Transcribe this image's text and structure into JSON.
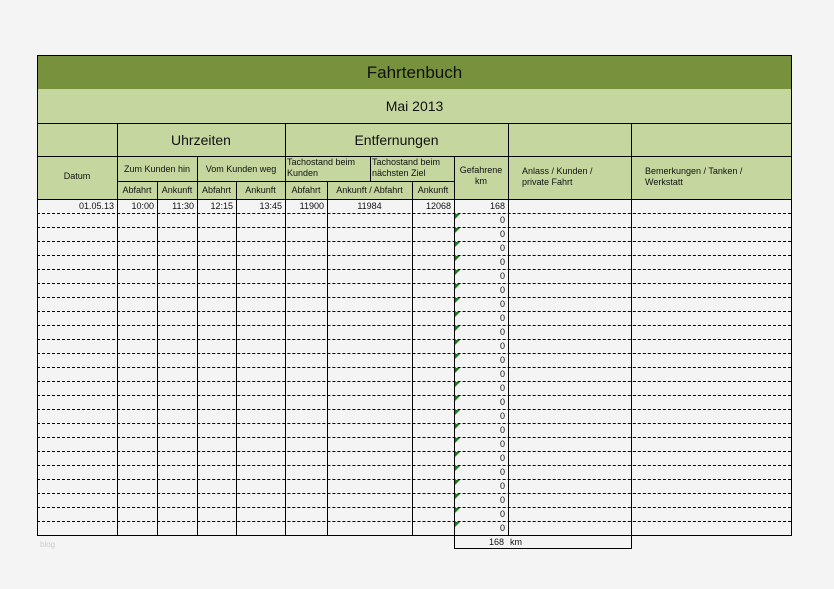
{
  "title": "Fahrtenbuch",
  "month": "Mai 2013",
  "groups": {
    "times": "Uhrzeiten",
    "distances": "Entfernungen"
  },
  "headers": {
    "date": "Datum",
    "to_customer": "Zum Kunden hin",
    "from_customer": "Vom Kunden weg",
    "odo_customer": "Tachostand beim Kunden",
    "odo_next": "Tachostand beim nächsten Ziel",
    "driven_km": "Gefahrene km",
    "reason": "Anlass / Kunden / private Fahrt",
    "remarks": "Bemerkungen / Tanken / Werkstatt",
    "departure": "Abfahrt",
    "arrival": "Ankunft",
    "arrival_departure": "Ankunft / Abfahrt"
  },
  "rows": [
    {
      "date": "01.05.13",
      "dep1": "10:00",
      "arr1": "11:30",
      "dep2": "12:15",
      "arr2": "13:45",
      "odo1": "11900",
      "odo2": "11984",
      "odo3": "12068",
      "km": "168",
      "reason": "",
      "remarks": ""
    },
    {
      "km": "0"
    },
    {
      "km": "0"
    },
    {
      "km": "0"
    },
    {
      "km": "0"
    },
    {
      "km": "0"
    },
    {
      "km": "0"
    },
    {
      "km": "0"
    },
    {
      "km": "0"
    },
    {
      "km": "0"
    },
    {
      "km": "0"
    },
    {
      "km": "0"
    },
    {
      "km": "0"
    },
    {
      "km": "0"
    },
    {
      "km": "0"
    },
    {
      "km": "0"
    },
    {
      "km": "0"
    },
    {
      "km": "0"
    },
    {
      "km": "0"
    },
    {
      "km": "0"
    },
    {
      "km": "0"
    },
    {
      "km": "0"
    },
    {
      "km": "0"
    },
    {
      "km": "0"
    }
  ],
  "total": {
    "value": "168",
    "unit": "km"
  },
  "watermark": "blog",
  "colors": {
    "title_bg": "#77913d",
    "header_bg": "#c5d79f",
    "formula_marker": "#1f7a1f"
  }
}
